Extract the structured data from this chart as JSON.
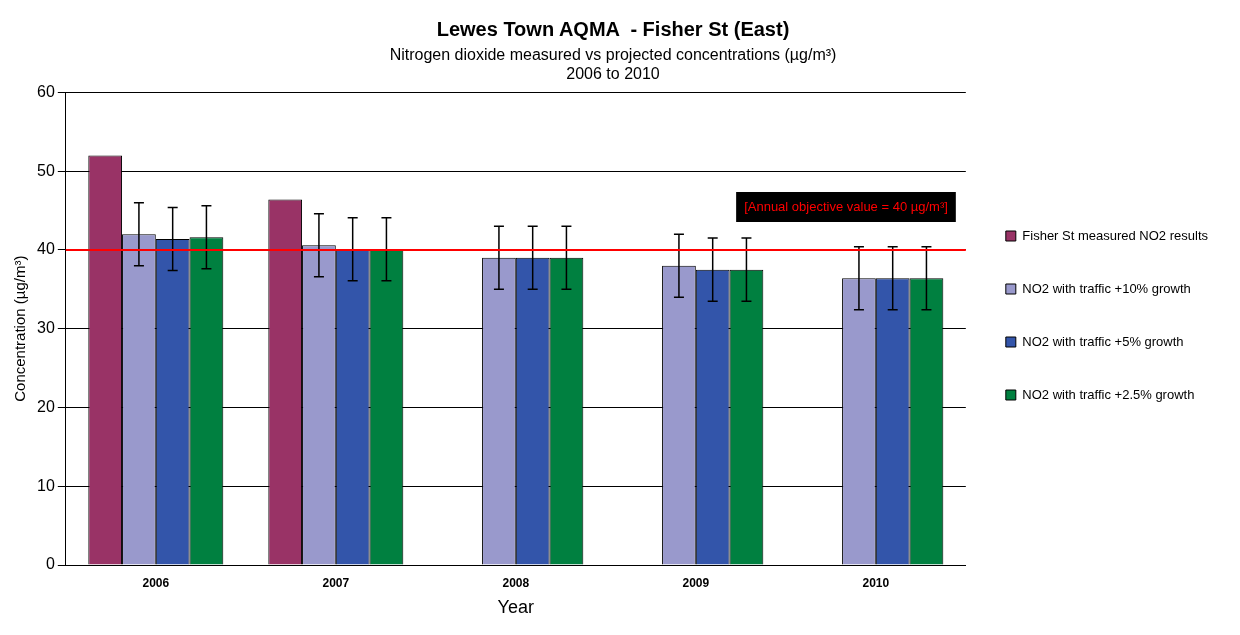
{
  "chart_data": {
    "type": "bar",
    "title": "Lewes Town AQMA  - Fisher St (East)",
    "subtitle": "Nitrogen dioxide measured vs projected concentrations (µg/m³)\n2006 to 2010",
    "xlabel": "Year",
    "ylabel": "Concentration (µg/m³)",
    "categories": [
      "2006",
      "2007",
      "2008",
      "2009",
      "2010"
    ],
    "series": [
      {
        "name": "Fisher St measured NO2 results",
        "color": "#993366",
        "values": [
          52,
          46.4,
          null,
          null,
          null
        ]
      },
      {
        "name": "NO2 with traffic +10% growth",
        "color": "#9999cc",
        "values": [
          42,
          40.6,
          39,
          38,
          36.4
        ],
        "errors": [
          4,
          4,
          4,
          4,
          4
        ]
      },
      {
        "name": "NO2 with traffic +5% growth",
        "color": "#3355aa",
        "values": [
          41.4,
          40.1,
          39,
          37.5,
          36.4
        ],
        "errors": [
          4,
          4,
          4,
          4,
          4
        ]
      },
      {
        "name": "NO2 with traffic +2.5% growth",
        "color": "#008040",
        "values": [
          41.6,
          40.1,
          39,
          37.5,
          36.4
        ],
        "errors": [
          4,
          4,
          4,
          4,
          4
        ]
      }
    ],
    "ylim": [
      0,
      60
    ],
    "yticks": [
      0,
      10,
      20,
      30,
      40,
      50,
      60
    ],
    "grid": "y",
    "legend": "right",
    "ref_lines": [
      {
        "axis": "y",
        "value": 40,
        "label": "[Annual objective value = 40 µg/m³]",
        "color": "#ff0000"
      }
    ]
  }
}
